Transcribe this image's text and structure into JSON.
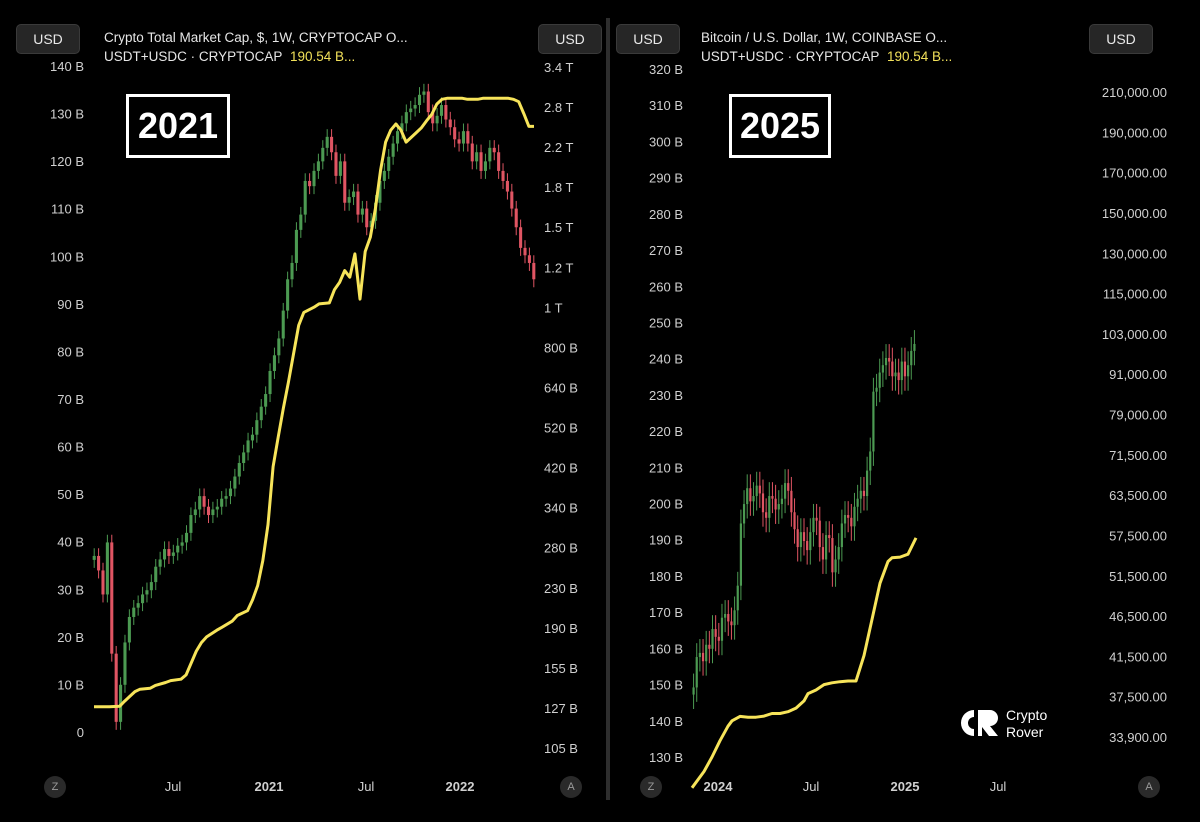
{
  "left": {
    "currency_label": "USD",
    "currency_label_right": "USD",
    "legend_line1": "Crypto Total Market Cap, $, 1W, CRYPTOCAP  O...",
    "legend_line2_prefix": "USDT+USDC · CRYPTOCAP",
    "legend_line2_value": "190.54 B...",
    "year_box": "2021",
    "btn_left": "Z",
    "btn_right": "A"
  },
  "right": {
    "currency_label": "USD",
    "currency_label_right": "USD",
    "legend_line1": "Bitcoin / U.S. Dollar, 1W, COINBASE  O...",
    "legend_line2_prefix": "USDT+USDC · CRYPTOCAP",
    "legend_line2_value": "190.54 B...",
    "year_box": "2025",
    "btn_left": "Z",
    "btn_right": "A"
  },
  "logo": {
    "line1": "Crypto",
    "line2": "Rover"
  },
  "colors": {
    "up": "#4c9a52",
    "down": "#e05563",
    "stablecoin_line": "#f7e45a",
    "background": "#000000"
  },
  "chart_data": [
    {
      "type": "line",
      "title": "Crypto Total Market Cap, $, 1W, CRYPTOCAP  O...",
      "grid": false,
      "x_tick_labels": [
        "Jul",
        "2021",
        "Jul",
        "2022"
      ],
      "left_axis": {
        "ticks": [
          "0",
          "10 B",
          "20 B",
          "30 B",
          "40 B",
          "50 B",
          "60 B",
          "70 B",
          "80 B",
          "90 B",
          "100 B",
          "110 B",
          "120 B",
          "130 B",
          "140 B"
        ],
        "range": [
          0,
          140
        ]
      },
      "right_axis": {
        "scale": "log",
        "ticks": [
          "105 B",
          "127 B",
          "155 B",
          "190 B",
          "230 B",
          "280 B",
          "340 B",
          "420 B",
          "520 B",
          "640 B",
          "800 B",
          "1 T",
          "1.2 T",
          "1.5 T",
          "1.8 T",
          "2.2 T",
          "2.8 T",
          "3.4 T"
        ]
      },
      "series": [
        {
          "name": "USDT+USDC · CRYPTOCAP",
          "axis": "left",
          "x": [
            0,
            3,
            5,
            6,
            8,
            9,
            11,
            12,
            14,
            15,
            17,
            18,
            20,
            21,
            22,
            24,
            25,
            27,
            28,
            30,
            31,
            32,
            33,
            34,
            35,
            36,
            37,
            38,
            40,
            41,
            43,
            44,
            46,
            47,
            48,
            49,
            50,
            51,
            52,
            53,
            54,
            55,
            56,
            57,
            58,
            59,
            60,
            61,
            63,
            64,
            65,
            66,
            67,
            68,
            69,
            70,
            72,
            73,
            75,
            76,
            77,
            79,
            81,
            82,
            83,
            84,
            85,
            86
          ],
          "values": [
            5.3,
            5.3,
            5.4,
            6.5,
            8.5,
            9.0,
            9.2,
            9.8,
            10.4,
            10.8,
            11.1,
            12.0,
            17.0,
            18.8,
            20.0,
            21.4,
            22.0,
            23.3,
            24.5,
            25.5,
            27.8,
            30.8,
            36.0,
            43.6,
            55.8,
            62.0,
            68.0,
            73.5,
            85.5,
            88.2,
            89.3,
            90.0,
            90.2,
            93.0,
            94.5,
            97.0,
            95.6,
            100.5,
            91.0,
            101.0,
            104.0,
            110.0,
            118.0,
            124.0,
            126.5,
            127.8,
            126.5,
            124.0,
            126.0,
            127.0,
            128.5,
            129.8,
            132.0,
            133.0,
            133.2,
            133.2,
            133.2,
            133.0,
            133.0,
            133.2,
            133.2,
            133.2,
            133.2,
            133.0,
            132.5,
            130.0,
            127.3,
            127.3
          ]
        },
        {
          "name": "Crypto Total Market Cap",
          "axis": "right",
          "type": "candlestick",
          "closes": [
            280,
            260,
            230,
            300,
            170,
            120,
            145,
            180,
            205,
            215,
            220,
            230,
            235,
            245,
            265,
            275,
            290,
            280,
            285,
            295,
            300,
            315,
            345,
            355,
            380,
            360,
            345,
            355,
            360,
            375,
            380,
            395,
            420,
            450,
            475,
            505,
            520,
            560,
            600,
            640,
            720,
            780,
            850,
            980,
            1150,
            1250,
            1480,
            1600,
            1900,
            1850,
            2000,
            2100,
            2250,
            2380,
            2200,
            1950,
            2100,
            1700,
            1750,
            1800,
            1600,
            1650,
            1500,
            1550,
            1700,
            1900,
            2000,
            2150,
            2300,
            2450,
            2550,
            2700,
            2750,
            2800,
            2950,
            3000,
            2700,
            2550,
            2650,
            2800,
            2600,
            2500,
            2350,
            2300,
            2450,
            2300,
            2100,
            2200,
            2000,
            2100,
            2250,
            2200,
            2000,
            1900,
            1800,
            1650,
            1500,
            1350,
            1300,
            1250,
            1150
          ]
        }
      ]
    },
    {
      "type": "line",
      "title": "Bitcoin / U.S. Dollar, 1W, COINBASE  O...",
      "grid": false,
      "x_tick_labels": [
        "2024",
        "Jul",
        "2025",
        "Jul"
      ],
      "left_axis": {
        "ticks": [
          "130 B",
          "140 B",
          "150 B",
          "160 B",
          "170 B",
          "180 B",
          "190 B",
          "200 B",
          "210 B",
          "220 B",
          "230 B",
          "240 B",
          "250 B",
          "260 B",
          "270 B",
          "280 B",
          "290 B",
          "300 B",
          "310 B",
          "320 B"
        ],
        "range": [
          130,
          320
        ]
      },
      "right_axis": {
        "scale": "log",
        "ticks": [
          "33,900.00",
          "37,500.00",
          "41,500.00",
          "46,500.00",
          "51,500.00",
          "57,500.00",
          "63,500.00",
          "71,500.00",
          "79,000.00",
          "91,000.00",
          "103,000.00",
          "115,000.00",
          "130,000.00",
          "150,000.00",
          "170,000.00",
          "190,000.00",
          "210,000.00"
        ]
      },
      "series": [
        {
          "name": "USDT+USDC · CRYPTOCAP",
          "axis": "left",
          "x": [
            0,
            3,
            5,
            7,
            9,
            10,
            12,
            14,
            16,
            18,
            20,
            22,
            24,
            26,
            28,
            29,
            31,
            33,
            35,
            37,
            39,
            41,
            43,
            45,
            47,
            49,
            50,
            52,
            54,
            56
          ],
          "values": [
            121.5,
            126.0,
            130.0,
            134.5,
            138.5,
            140.0,
            141.2,
            141.0,
            141.0,
            141.3,
            142.0,
            142.0,
            142.5,
            143.5,
            145.5,
            147.5,
            148.5,
            150.0,
            150.5,
            150.8,
            151.0,
            151.0,
            158.0,
            168.0,
            178.0,
            184.0,
            185.0,
            185.2,
            186.0,
            190.5
          ]
        },
        {
          "name": "Bitcoin / U.S. Dollar",
          "axis": "right",
          "type": "candlestick",
          "closes": [
            39000,
            42500,
            43000,
            42000,
            44000,
            43500,
            46000,
            45000,
            44500,
            47500,
            48000,
            47000,
            46500,
            48500,
            52000,
            62000,
            65500,
            68500,
            66000,
            67000,
            69000,
            67500,
            64000,
            63000,
            67000,
            66500,
            64500,
            65500,
            66500,
            69500,
            68000,
            64000,
            61000,
            58000,
            60500,
            59000,
            57500,
            60500,
            63000,
            62500,
            58000,
            56000,
            60000,
            59500,
            54000,
            56000,
            58000,
            62000,
            63500,
            63000,
            61500,
            65000,
            66500,
            68000,
            67000,
            72000,
            76000,
            90000,
            91000,
            95000,
            97000,
            99000,
            98000,
            94000,
            95000,
            93000,
            98000,
            94000,
            97000,
            101000,
            103000
          ]
        }
      ]
    }
  ]
}
